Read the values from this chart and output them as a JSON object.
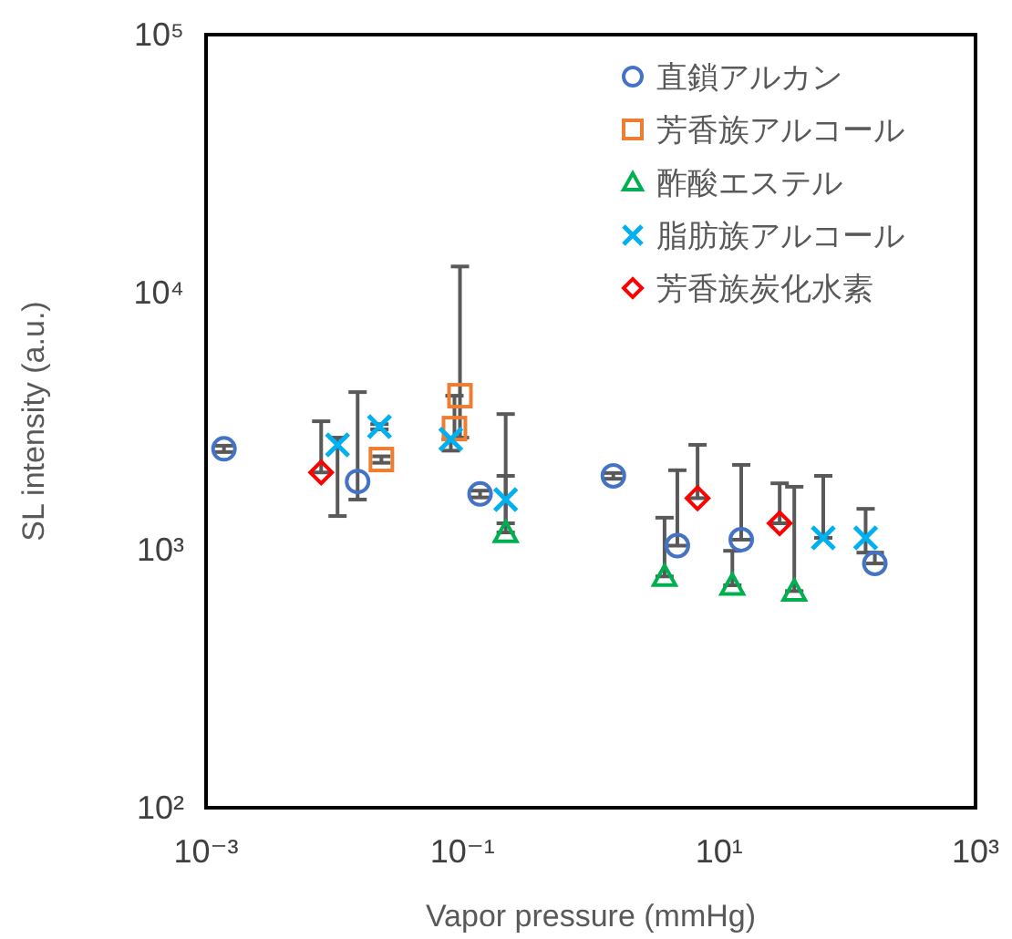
{
  "chart_data": {
    "type": "scatter",
    "xlabel": "Vapor pressure (mmHg)",
    "ylabel": "SL intensity (a.u.)",
    "log": "xy",
    "grid": false,
    "legend": "top right",
    "xlim": [
      0.001,
      1000
    ],
    "ylim": [
      100,
      100000
    ],
    "xticks": [
      {
        "value": 0.001,
        "label": "10⁻³"
      },
      {
        "value": 0.1,
        "label": "10⁻¹"
      },
      {
        "value": 10,
        "label": "10¹"
      },
      {
        "value": 1000,
        "label": "10³"
      }
    ],
    "yticks": [
      {
        "value": 100,
        "label": "10²"
      },
      {
        "value": 1000,
        "label": "10³"
      },
      {
        "value": 10000,
        "label": "10⁴"
      },
      {
        "value": 100000,
        "label": "10⁵"
      }
    ],
    "series": [
      {
        "name": "直鎖アルカン",
        "color": "#4472c4",
        "marker": "circle",
        "x": [
          0.00138,
          0.0152,
          0.137,
          1.5,
          4.73,
          14.9,
          164
        ],
        "values": [
          2470,
          1845,
          1650,
          1940,
          1040,
          1097,
          887
        ],
        "errors": [
          [
            2400,
            2540
          ],
          [
            1570,
            4100
          ],
          [
            1600,
            1700
          ],
          [
            1890,
            1990
          ],
          [
            1040,
            2040
          ],
          [
            1097,
            2140
          ],
          [
            887,
            977
          ]
        ]
      },
      {
        "name": "芳香族アルコール",
        "color": "#ed7d31",
        "marker": "square",
        "x": [
          0.0233,
          0.0865,
          0.0955
        ],
        "values": [
          2245,
          2960,
          3970
        ],
        "errors": [
          [
            2180,
            2310
          ],
          [
            2730,
            3970
          ],
          [
            2730,
            12600
          ]
        ]
      },
      {
        "name": "酢酸エステル",
        "color": "#00b050",
        "marker": "triangle",
        "x": [
          0.217,
          3.76,
          12.7,
          38.6
        ],
        "values": [
          1170,
          790,
          730,
          693
        ],
        "errors": [
          [
            1170,
            1940
          ],
          [
            790,
            1335
          ],
          [
            730,
            993
          ],
          [
            693,
            1760
          ]
        ]
      },
      {
        "name": "脂肪族アルコール",
        "color": "#00b0f0",
        "marker": "cross",
        "x": [
          0.0106,
          0.0225,
          0.081,
          0.217,
          65,
          139
        ],
        "values": [
          2560,
          3010,
          2690,
          1570,
          1115,
          1115
        ],
        "errors": [
          [
            1355,
            2730
          ],
          [
            2940,
            3080
          ],
          [
            2430,
            2690
          ],
          [
            1270,
            3370
          ],
          [
            1115,
            1940
          ],
          [
            977,
            1445
          ]
        ]
      },
      {
        "name": "芳香族炭化水素",
        "color": "#ff0000",
        "marker": "diamond",
        "x": [
          0.0079,
          6.8,
          29.7
        ],
        "values": [
          2000,
          1590,
          1270
        ],
        "errors": [
          [
            2000,
            3160
          ],
          [
            1590,
            2560
          ],
          [
            1270,
            1815
          ]
        ]
      }
    ]
  }
}
